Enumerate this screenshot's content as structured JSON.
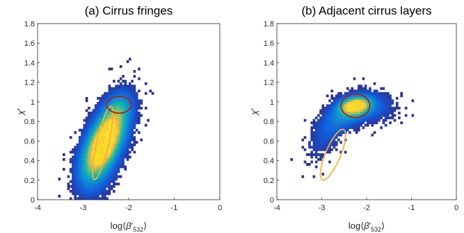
{
  "chart_data": [
    {
      "type": "heatmap",
      "title": "(a)  Cirrus fringes",
      "xlabel": {
        "base": "log",
        "open": "⟨",
        "symbol": "β",
        "prime": "′",
        "sub": "532",
        "close": "⟩"
      },
      "ylabel": {
        "symbol": "χ",
        "prime": "′"
      },
      "xlim": [
        -4,
        0
      ],
      "ylim": [
        0,
        1.8
      ],
      "xticks": [
        "-4",
        "-3",
        "-2",
        "-1",
        "0"
      ],
      "yticks": [
        "0",
        "0.2",
        "0.4",
        "0.6",
        "0.8",
        "1",
        "1.2",
        "1.4",
        "1.6",
        "1.8"
      ],
      "grid": false,
      "colormap": "parula",
      "density_clusters": [
        {
          "x": -2.55,
          "y": 0.58,
          "sx": 0.28,
          "sy": 0.22,
          "rho": 0.6,
          "w": 1.0
        },
        {
          "x": -2.35,
          "y": 0.72,
          "sx": 0.32,
          "sy": 0.26,
          "rho": 0.4,
          "w": 0.35
        },
        {
          "x": -2.75,
          "y": 0.35,
          "sx": 0.3,
          "sy": 0.25,
          "rho": 0.2,
          "w": 0.25
        },
        {
          "x": -2.2,
          "y": 0.95,
          "sx": 0.18,
          "sy": 0.09,
          "rho": 0.1,
          "w": 0.2
        }
      ],
      "ellipses": [
        {
          "color": "#f0b43c",
          "cx": -2.57,
          "cy": 0.58,
          "rx": 0.42,
          "ry": 0.12,
          "angle_deg": 62
        },
        {
          "color": "#b01c1c",
          "cx": -2.21,
          "cy": 0.97,
          "rx": 0.27,
          "ry": 0.085,
          "angle_deg": 0
        }
      ]
    },
    {
      "type": "heatmap",
      "title": "(b) Adjacent cirrus layers",
      "xlabel": {
        "base": "log",
        "open": "⟨",
        "symbol": "β",
        "prime": "′",
        "sub": "532",
        "close": "⟩"
      },
      "ylabel": {
        "symbol": "χ",
        "prime": "′"
      },
      "xlim": [
        -4,
        0
      ],
      "ylim": [
        0,
        1.8
      ],
      "xticks": [
        "-4",
        "-3",
        "-2",
        "-1",
        "0"
      ],
      "yticks": [
        "0",
        "0.2",
        "0.4",
        "0.6",
        "0.8",
        "1",
        "1.2",
        "1.4",
        "1.6",
        "1.8"
      ],
      "grid": false,
      "colormap": "parula",
      "density_clusters": [
        {
          "x": -2.25,
          "y": 0.96,
          "sx": 0.22,
          "sy": 0.06,
          "rho": 0.15,
          "w": 1.0
        },
        {
          "x": -2.45,
          "y": 0.88,
          "sx": 0.35,
          "sy": 0.12,
          "rho": 0.45,
          "w": 0.35
        },
        {
          "x": -2.95,
          "y": 0.62,
          "sx": 0.3,
          "sy": 0.17,
          "rho": 0.5,
          "w": 0.15
        },
        {
          "x": -1.8,
          "y": 0.95,
          "sx": 0.35,
          "sy": 0.12,
          "rho": -0.1,
          "w": 0.18
        }
      ],
      "ellipses": [
        {
          "color": "#b01c1c",
          "cx": -2.25,
          "cy": 0.96,
          "rx": 0.32,
          "ry": 0.12,
          "angle_deg": 0
        },
        {
          "color": "#f0b43c",
          "cx": -2.75,
          "cy": 0.46,
          "rx": 0.36,
          "ry": 0.13,
          "angle_deg": 42
        }
      ]
    }
  ]
}
